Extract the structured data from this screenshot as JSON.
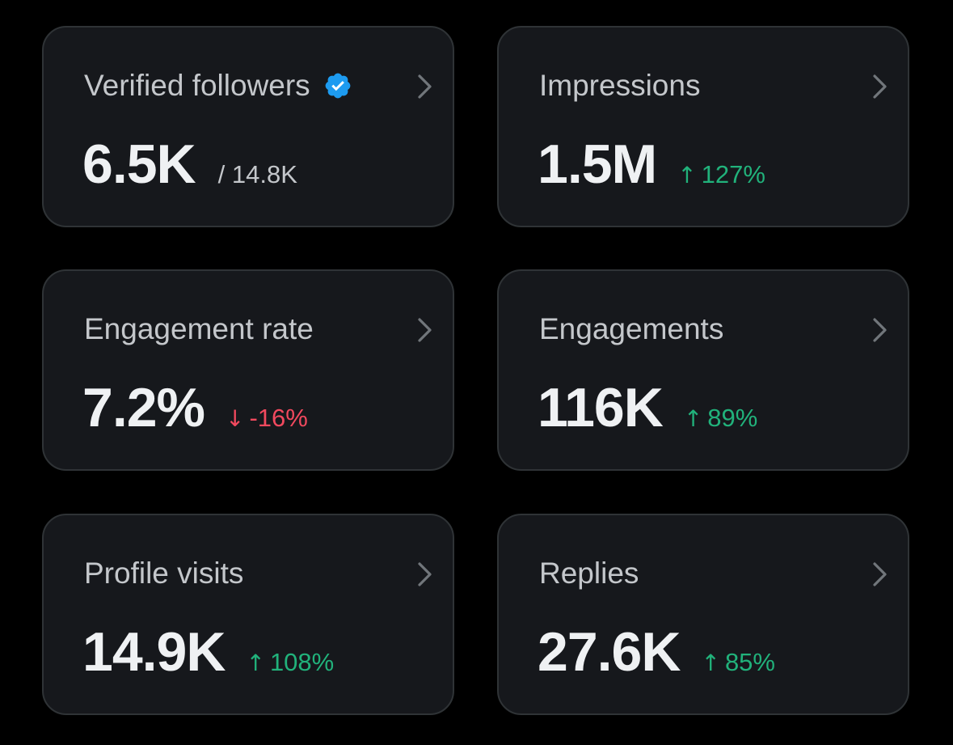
{
  "cards": [
    {
      "title": "Verified followers",
      "value": "6.5K",
      "sub": "/ 14.8K",
      "icon": "verified-badge-icon",
      "verified_color": "#1d9bf0"
    },
    {
      "title": "Impressions",
      "value": "1.5M",
      "change": {
        "direction": "up",
        "arrow": "↑",
        "text": "127%"
      }
    },
    {
      "title": "Engagement rate",
      "value": "7.2%",
      "change": {
        "direction": "down",
        "arrow": "↓",
        "text": "-16%"
      }
    },
    {
      "title": "Engagements",
      "value": "116K",
      "change": {
        "direction": "up",
        "arrow": "↑",
        "text": "89%"
      }
    },
    {
      "title": "Profile visits",
      "value": "14.9K",
      "change": {
        "direction": "up",
        "arrow": "↑",
        "text": "108%"
      }
    },
    {
      "title": "Replies",
      "value": "27.6K",
      "change": {
        "direction": "up",
        "arrow": "↑",
        "text": "85%"
      }
    }
  ],
  "colors": {
    "background": "#000000",
    "card_background": "#16181c",
    "card_border": "#2f3336",
    "up": "#21b27b",
    "down": "#f2495e",
    "verified": "#1d9bf0"
  }
}
